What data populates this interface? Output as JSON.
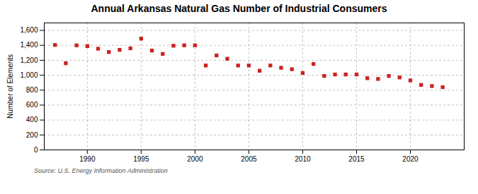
{
  "chart_data": {
    "type": "scatter",
    "title": "Annual Arkansas Natural Gas Number of Industrial Consumers",
    "ylabel": "Number of Elements",
    "source": "Source: U.S. Energy Information Administration",
    "x": [
      1987,
      1988,
      1989,
      1990,
      1991,
      1992,
      1993,
      1994,
      1995,
      1996,
      1997,
      1998,
      1999,
      2000,
      2001,
      2002,
      2003,
      2004,
      2005,
      2006,
      2007,
      2008,
      2009,
      2010,
      2011,
      2012,
      2013,
      2014,
      2015,
      2016,
      2017,
      2018,
      2019,
      2020,
      2021,
      2022,
      2023
    ],
    "values": [
      1405,
      1160,
      1400,
      1390,
      1355,
      1310,
      1340,
      1360,
      1490,
      1330,
      1285,
      1395,
      1400,
      1400,
      1130,
      1265,
      1220,
      1130,
      1130,
      1060,
      1130,
      1100,
      1080,
      1030,
      1150,
      990,
      1010,
      1010,
      1010,
      960,
      950,
      990,
      970,
      930,
      870,
      855,
      840
    ],
    "color": "#cc2222",
    "marker": "square",
    "xlim": [
      1986,
      2025
    ],
    "xticks": [
      1990,
      1995,
      2000,
      2005,
      2010,
      2015,
      2020
    ],
    "ylim": [
      0,
      1700
    ],
    "yticks": [
      0,
      200,
      400,
      600,
      800,
      {
        "value": 1000,
        "label": "1,000"
      },
      {
        "value": 1200,
        "label": "1,200"
      },
      {
        "value": 1400,
        "label": "1,400"
      },
      {
        "value": 1600,
        "label": "1,600"
      }
    ],
    "grid": true
  }
}
